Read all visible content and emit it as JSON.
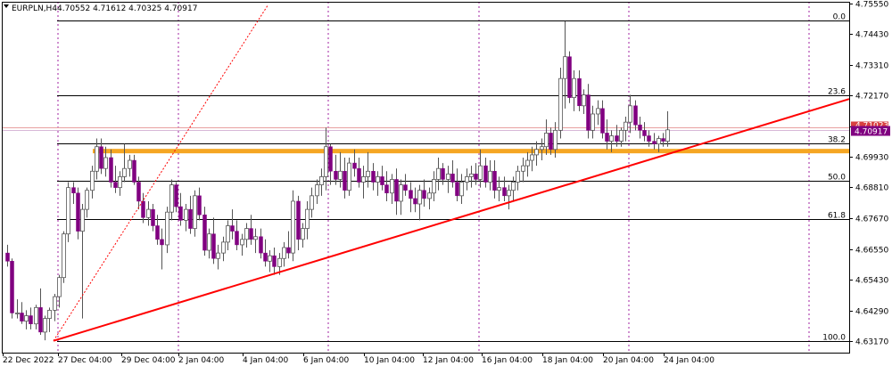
{
  "header": {
    "symbol": "EURPLN,H4",
    "ohlc": "4.70552 4.71612 4.70325 4.70917",
    "current_price": "4.70917",
    "hidden_price_label": "4.71023"
  },
  "colors": {
    "bull_candle": "#ffffff",
    "bear_candle": "#800080",
    "wick": "#555555",
    "trendline": "#ff0000",
    "support_zone": "#f5a623",
    "fib_lines": "#000000",
    "period_separator": "#a020a0",
    "price_badge": "#800080",
    "ask_line": "#e8a0a0"
  },
  "chart_data": {
    "type": "candlestick",
    "symbol": "EURPLN",
    "timeframe": "H4",
    "y_range": [
      4.6317,
      4.7555
    ],
    "y_ticks": [
      "4.75550",
      "4.74430",
      "4.73310",
      "4.72170",
      "4.71050",
      "4.69930",
      "4.68810",
      "4.67670",
      "4.66550",
      "4.65430",
      "4.64290",
      "4.63170"
    ],
    "x_ticks": [
      "22 Dec 2022",
      "27 Dec 04:00",
      "29 Dec 04:00",
      "2 Jan 04:00",
      "4 Jan 04:00",
      "6 Jan 04:00",
      "10 Jan 04:00",
      "12 Jan 04:00",
      "16 Jan 04:00",
      "18 Jan 04:00",
      "20 Jan 04:00",
      "24 Jan 04:00"
    ],
    "fib_levels": [
      {
        "label": "0.0",
        "price": 4.7492
      },
      {
        "label": "23.6",
        "price": 4.7218
      },
      {
        "label": "38.2",
        "price": 4.7041
      },
      {
        "label": "50.0",
        "price": 4.6905
      },
      {
        "label": "61.8",
        "price": 4.6763
      },
      {
        "label": "100.0",
        "price": 4.6317
      }
    ],
    "support_zone": [
      4.7013,
      4.7022
    ],
    "trendline": {
      "start": {
        "bar": 0,
        "price": 4.6318
      },
      "end": {
        "bar": 145,
        "price": 4.7205
      }
    },
    "dotted_trendline": {
      "start": {
        "bar": 0,
        "price": 4.6318
      },
      "end": {
        "bar": 36,
        "price": 4.7515
      }
    },
    "current_price": 4.70917,
    "ask_price": 4.71023,
    "candles": [
      [
        4.664,
        4.667,
        4.659,
        4.661
      ],
      [
        4.661,
        4.662,
        4.64,
        4.642
      ],
      [
        4.642,
        4.647,
        4.64,
        4.642
      ],
      [
        4.642,
        4.646,
        4.638,
        4.639
      ],
      [
        4.639,
        4.643,
        4.636,
        4.641
      ],
      [
        4.641,
        4.644,
        4.636,
        4.638
      ],
      [
        4.638,
        4.645,
        4.636,
        4.644
      ],
      [
        4.644,
        4.651,
        4.634,
        4.635
      ],
      [
        4.635,
        4.641,
        4.632,
        4.64
      ],
      [
        4.64,
        4.644,
        4.635,
        4.643
      ],
      [
        4.643,
        4.649,
        4.639,
        4.648
      ],
      [
        4.648,
        4.656,
        4.644,
        4.655
      ],
      [
        4.655,
        4.672,
        4.653,
        4.671
      ],
      [
        4.671,
        4.69,
        4.668,
        4.688
      ],
      [
        4.688,
        4.69,
        4.682,
        4.686
      ],
      [
        4.686,
        4.688,
        4.669,
        4.672
      ],
      [
        4.672,
        4.682,
        4.64,
        4.68
      ],
      [
        4.68,
        4.688,
        4.677,
        4.687
      ],
      [
        4.687,
        4.696,
        4.684,
        4.694
      ],
      [
        4.694,
        4.706,
        4.691,
        4.703
      ],
      [
        4.703,
        4.706,
        4.693,
        4.695
      ],
      [
        4.695,
        4.703,
        4.692,
        4.699
      ],
      [
        4.699,
        4.702,
        4.688,
        4.69
      ],
      [
        4.69,
        4.696,
        4.686,
        4.688
      ],
      [
        4.688,
        4.694,
        4.685,
        4.692
      ],
      [
        4.692,
        4.704,
        4.69,
        4.695
      ],
      [
        4.695,
        4.7,
        4.692,
        4.698
      ],
      [
        4.698,
        4.7,
        4.689,
        4.69
      ],
      [
        4.69,
        4.692,
        4.68,
        4.683
      ],
      [
        4.683,
        4.686,
        4.675,
        4.677
      ],
      [
        4.677,
        4.683,
        4.674,
        4.68
      ],
      [
        4.68,
        4.682,
        4.672,
        4.674
      ],
      [
        4.674,
        4.678,
        4.667,
        4.669
      ],
      [
        4.669,
        4.673,
        4.658,
        4.667
      ],
      [
        4.667,
        4.681,
        4.664,
        4.679
      ],
      [
        4.679,
        4.691,
        4.676,
        4.689
      ],
      [
        4.689,
        4.69,
        4.679,
        4.681
      ],
      [
        4.681,
        4.686,
        4.674,
        4.676
      ],
      [
        4.676,
        4.682,
        4.672,
        4.68
      ],
      [
        4.68,
        4.685,
        4.671,
        4.673
      ],
      [
        4.673,
        4.687,
        4.67,
        4.685
      ],
      [
        4.685,
        4.688,
        4.676,
        4.678
      ],
      [
        4.678,
        4.681,
        4.663,
        4.665
      ],
      [
        4.665,
        4.673,
        4.662,
        4.671
      ],
      [
        4.671,
        4.677,
        4.66,
        4.662
      ],
      [
        4.662,
        4.667,
        4.658,
        4.664
      ],
      [
        4.664,
        4.67,
        4.661,
        4.668
      ],
      [
        4.668,
        4.676,
        4.665,
        4.674
      ],
      [
        4.674,
        4.68,
        4.669,
        4.672
      ],
      [
        4.672,
        4.676,
        4.665,
        4.667
      ],
      [
        4.667,
        4.671,
        4.663,
        4.669
      ],
      [
        4.669,
        4.675,
        4.666,
        4.673
      ],
      [
        4.673,
        4.678,
        4.667,
        4.669
      ],
      [
        4.669,
        4.673,
        4.664,
        4.67
      ],
      [
        4.67,
        4.673,
        4.662,
        4.664
      ],
      [
        4.664,
        4.669,
        4.659,
        4.661
      ],
      [
        4.661,
        4.665,
        4.657,
        4.663
      ],
      [
        4.663,
        4.666,
        4.656,
        4.659
      ],
      [
        4.659,
        4.664,
        4.656,
        4.662
      ],
      [
        4.662,
        4.668,
        4.659,
        4.666
      ],
      [
        4.666,
        4.672,
        4.662,
        4.664
      ],
      [
        4.664,
        4.687,
        4.661,
        4.683
      ],
      [
        4.683,
        4.685,
        4.665,
        4.669
      ],
      [
        4.669,
        4.675,
        4.666,
        4.673
      ],
      [
        4.673,
        4.683,
        4.669,
        4.68
      ],
      [
        4.68,
        4.688,
        4.677,
        4.685
      ],
      [
        4.685,
        4.691,
        4.682,
        4.689
      ],
      [
        4.689,
        4.695,
        4.685,
        4.692
      ],
      [
        4.692,
        4.71,
        4.687,
        4.703
      ],
      [
        4.703,
        4.704,
        4.689,
        4.694
      ],
      [
        4.694,
        4.7,
        4.689,
        4.691
      ],
      [
        4.691,
        4.701,
        4.688,
        4.694
      ],
      [
        4.694,
        4.699,
        4.684,
        4.687
      ],
      [
        4.687,
        4.699,
        4.685,
        4.697
      ],
      [
        4.697,
        4.702,
        4.692,
        4.695
      ],
      [
        4.695,
        4.699,
        4.688,
        4.69
      ],
      [
        4.69,
        4.696,
        4.684,
        4.692
      ],
      [
        4.692,
        4.701,
        4.688,
        4.694
      ],
      [
        4.694,
        4.697,
        4.687,
        4.69
      ],
      [
        4.69,
        4.694,
        4.685,
        4.692
      ],
      [
        4.692,
        4.696,
        4.687,
        4.689
      ],
      [
        4.689,
        4.694,
        4.683,
        4.686
      ],
      [
        4.686,
        4.693,
        4.682,
        4.691
      ],
      [
        4.691,
        4.695,
        4.678,
        4.683
      ],
      [
        4.683,
        4.691,
        4.678,
        4.689
      ],
      [
        4.689,
        4.693,
        4.685,
        4.687
      ],
      [
        4.687,
        4.69,
        4.679,
        4.684
      ],
      [
        4.684,
        4.688,
        4.679,
        4.682
      ],
      [
        4.682,
        4.689,
        4.676,
        4.687
      ],
      [
        4.687,
        4.691,
        4.681,
        4.684
      ],
      [
        4.684,
        4.688,
        4.68,
        4.686
      ],
      [
        4.686,
        4.694,
        4.683,
        4.691
      ],
      [
        4.691,
        4.699,
        4.687,
        4.695
      ],
      [
        4.695,
        4.697,
        4.689,
        4.691
      ],
      [
        4.691,
        4.696,
        4.686,
        4.693
      ],
      [
        4.693,
        4.698,
        4.688,
        4.69
      ],
      [
        4.69,
        4.695,
        4.683,
        4.685
      ],
      [
        4.685,
        4.693,
        4.682,
        4.69
      ],
      [
        4.69,
        4.695,
        4.687,
        4.692
      ],
      [
        4.692,
        4.696,
        4.688,
        4.693
      ],
      [
        4.693,
        4.697,
        4.689,
        4.691
      ],
      [
        4.691,
        4.702,
        4.688,
        4.696
      ],
      [
        4.696,
        4.699,
        4.688,
        4.69
      ],
      [
        4.69,
        4.698,
        4.687,
        4.694
      ],
      [
        4.694,
        4.698,
        4.684,
        4.687
      ],
      [
        4.687,
        4.692,
        4.683,
        4.688
      ],
      [
        4.688,
        4.692,
        4.683,
        4.685
      ],
      [
        4.685,
        4.689,
        4.68,
        4.687
      ],
      [
        4.687,
        4.692,
        4.683,
        4.69
      ],
      [
        4.69,
        4.696,
        4.687,
        4.694
      ],
      [
        4.694,
        4.699,
        4.69,
        4.696
      ],
      [
        4.696,
        4.701,
        4.692,
        4.698
      ],
      [
        4.698,
        4.703,
        4.694,
        4.7
      ],
      [
        4.7,
        4.705,
        4.696,
        4.702
      ],
      [
        4.702,
        4.706,
        4.698,
        4.703
      ],
      [
        4.703,
        4.713,
        4.7,
        4.708
      ],
      [
        4.708,
        4.71,
        4.7,
        4.702
      ],
      [
        4.702,
        4.712,
        4.699,
        4.709
      ],
      [
        4.709,
        4.732,
        4.706,
        4.728
      ],
      [
        4.728,
        4.749,
        4.717,
        4.736
      ],
      [
        4.736,
        4.738,
        4.719,
        4.721
      ],
      [
        4.721,
        4.731,
        4.716,
        4.728
      ],
      [
        4.728,
        4.731,
        4.716,
        4.718
      ],
      [
        4.718,
        4.724,
        4.715,
        4.722
      ],
      [
        4.722,
        4.726,
        4.706,
        4.709
      ],
      [
        4.709,
        4.718,
        4.706,
        4.715
      ],
      [
        4.715,
        4.72,
        4.711,
        4.717
      ],
      [
        4.717,
        4.72,
        4.706,
        4.708
      ],
      [
        4.708,
        4.713,
        4.702,
        4.705
      ],
      [
        4.705,
        4.709,
        4.701,
        4.707
      ],
      [
        4.707,
        4.711,
        4.703,
        4.705
      ],
      [
        4.705,
        4.71,
        4.703,
        4.709
      ],
      [
        4.709,
        4.714,
        4.705,
        4.712
      ],
      [
        4.712,
        4.722,
        4.708,
        4.718
      ],
      [
        4.718,
        4.72,
        4.709,
        4.711
      ],
      [
        4.711,
        4.714,
        4.706,
        4.709
      ],
      [
        4.709,
        4.712,
        4.705,
        4.707
      ],
      [
        4.707,
        4.709,
        4.703,
        4.705
      ],
      [
        4.705,
        4.708,
        4.702,
        4.704
      ],
      [
        4.704,
        4.707,
        4.701,
        4.706
      ],
      [
        4.706,
        4.708,
        4.703,
        4.705
      ],
      [
        4.705,
        4.716,
        4.703,
        4.70917
      ]
    ]
  }
}
